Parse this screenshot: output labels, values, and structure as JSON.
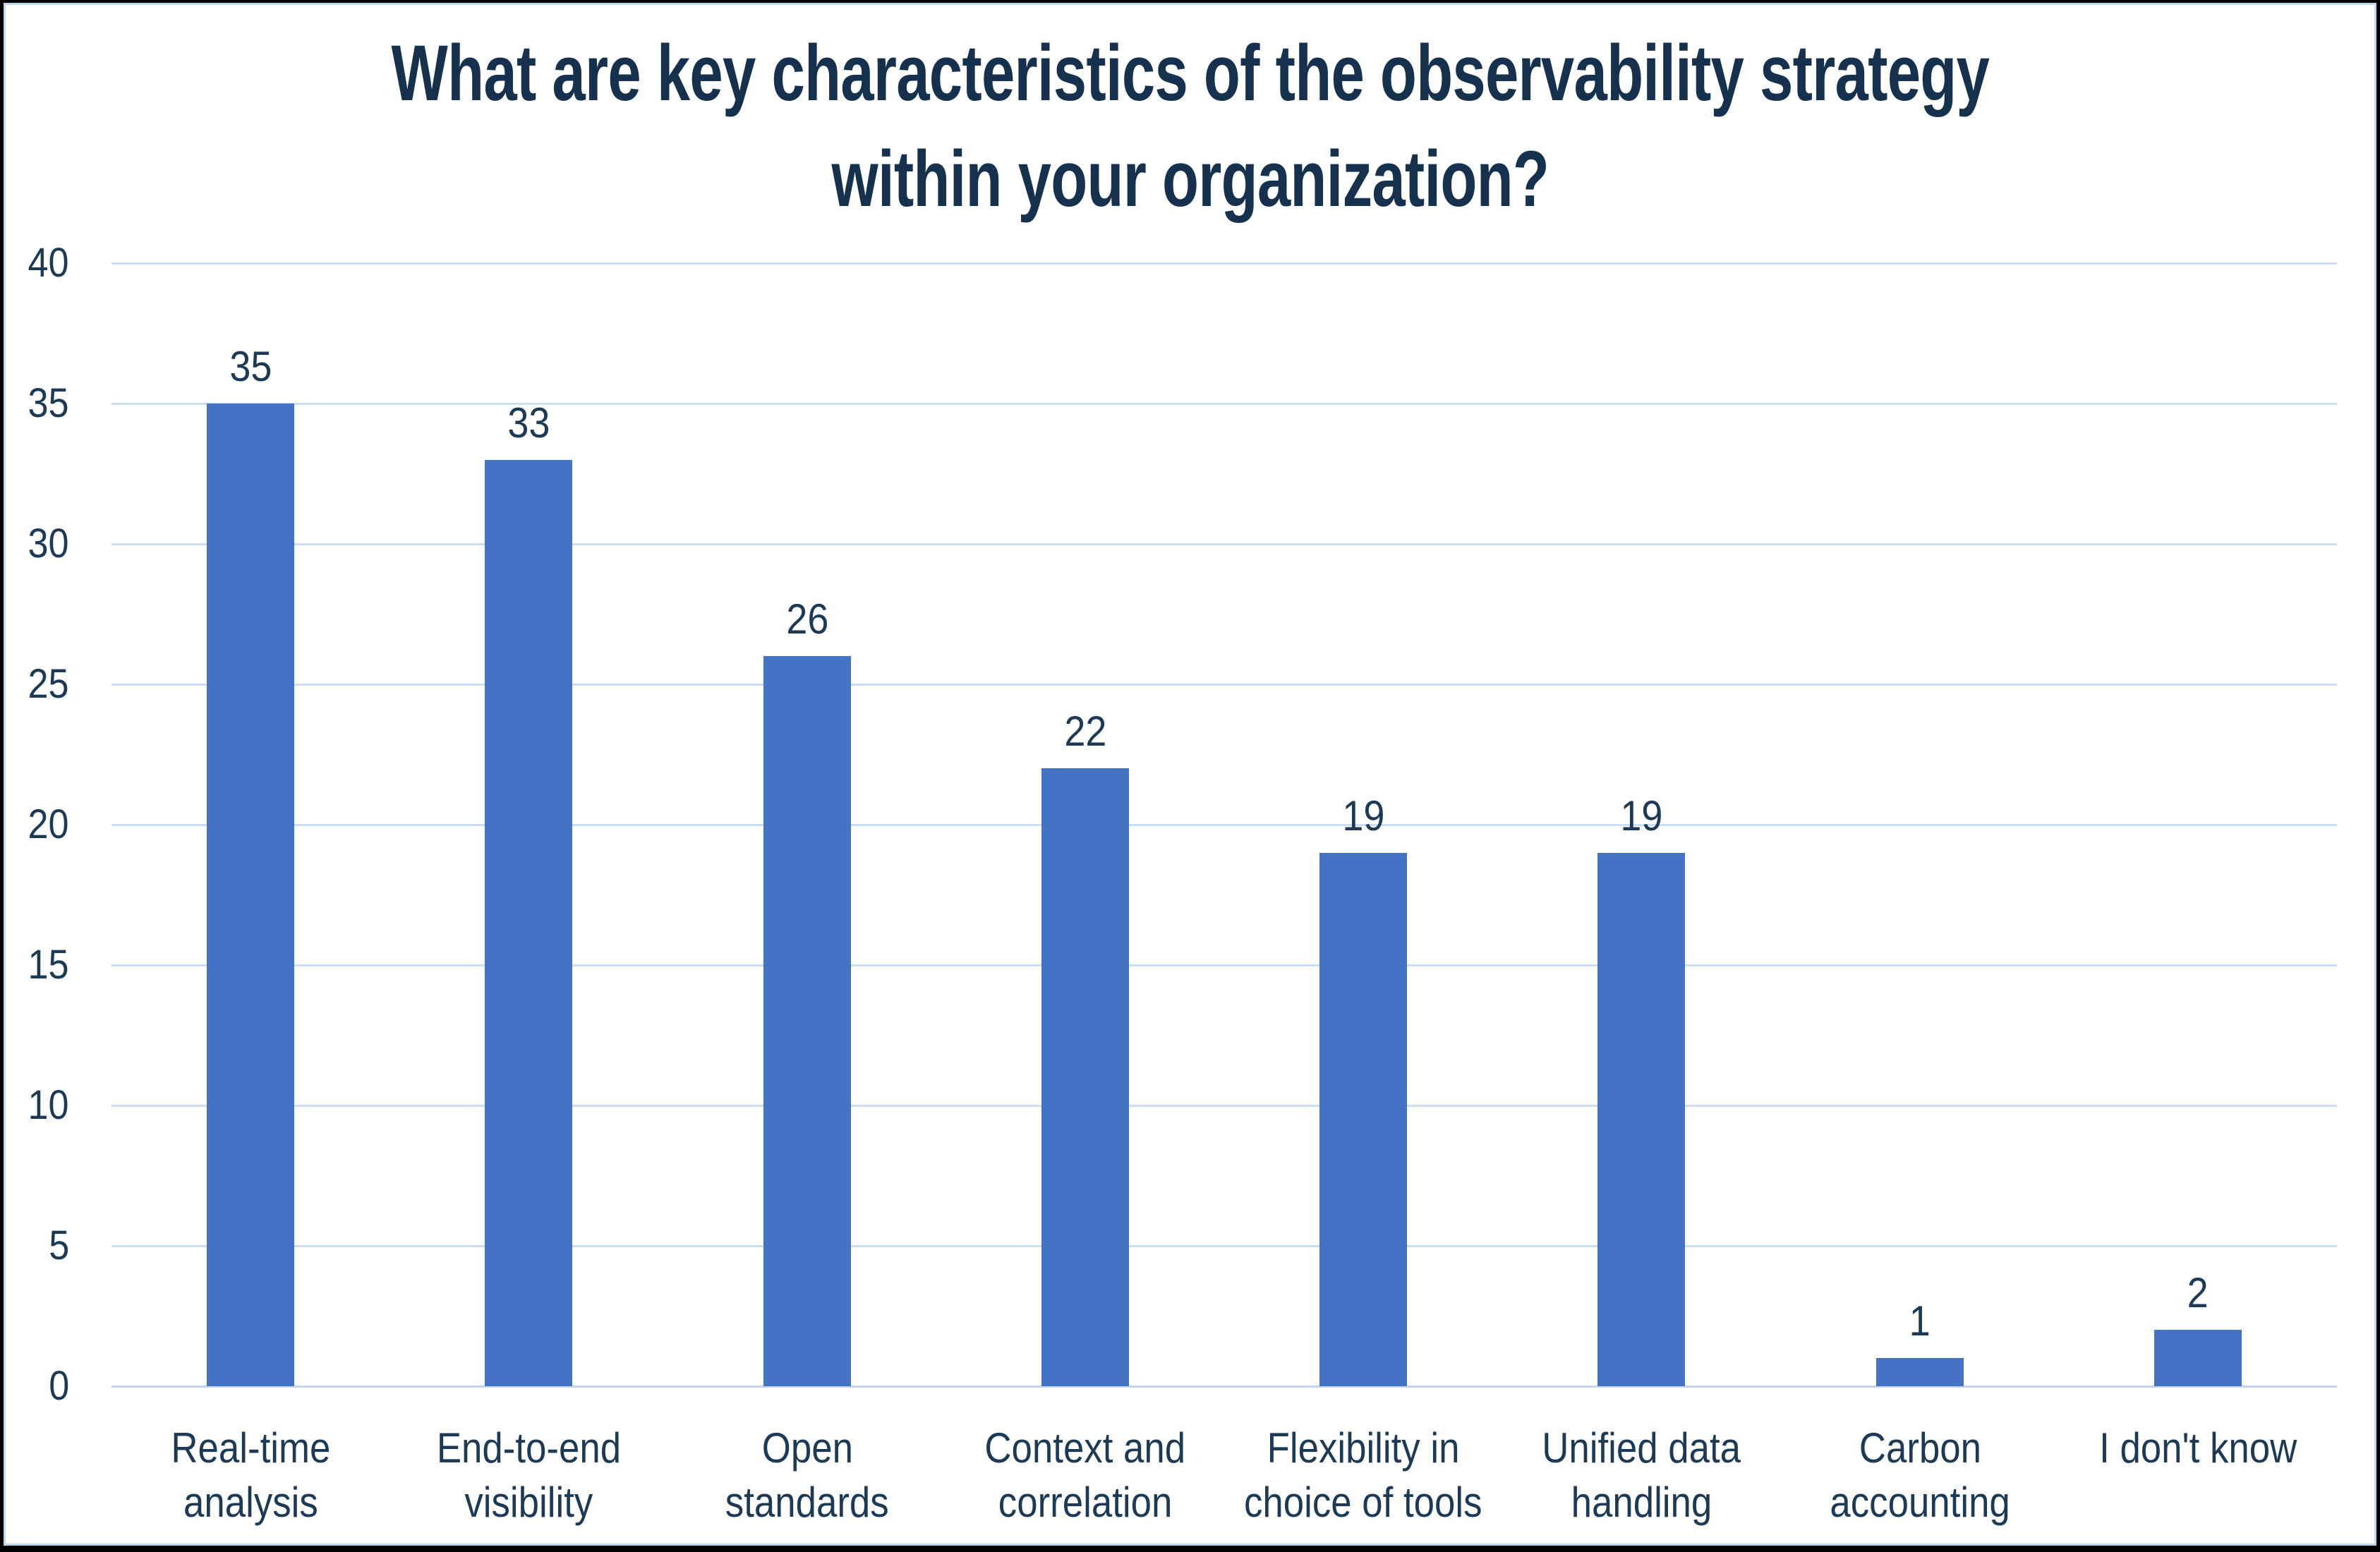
{
  "chart_data": {
    "type": "bar",
    "title": "What are key characteristics of the observability strategy within your organization?",
    "title_lines": [
      "What are key characteristics of the observability strategy",
      "within your organization?"
    ],
    "categories": [
      "Real-time analysis",
      "End-to-end visibility",
      "Open standards",
      "Context and correlation",
      "Flexibility in choice of tools",
      "Unified data handling",
      "Carbon accounting",
      "I don't know"
    ],
    "category_lines": [
      [
        "Real-time",
        "analysis"
      ],
      [
        "End-to-end",
        "visibility"
      ],
      [
        "Open",
        "standards"
      ],
      [
        "Context and",
        "correlation"
      ],
      [
        "Flexibility in",
        "choice of tools"
      ],
      [
        "Unified data",
        "handling"
      ],
      [
        "Carbon",
        "accounting"
      ],
      [
        "I don't know"
      ]
    ],
    "values": [
      35,
      33,
      26,
      22,
      19,
      19,
      1,
      2
    ],
    "data_labels": [
      "35",
      "33",
      "26",
      "22",
      "19",
      "19",
      "1",
      "2"
    ],
    "xlabel": "",
    "ylabel": "",
    "ylim": [
      0,
      40
    ],
    "ytick_step": 5,
    "yticks": [
      0,
      5,
      10,
      15,
      20,
      25,
      30,
      35,
      40
    ],
    "grid": "horizontal-only",
    "legend": "none"
  },
  "colors": {
    "title_text": "#16314E",
    "axis_text": "#1C3A56",
    "bar_fill": "#4472C4",
    "gridline": "#CCDEF2",
    "axis_line": "#C2D7EE",
    "inner_border": "#BDD7EE",
    "outer_border": "#000000",
    "background": "#FFFFFF"
  }
}
